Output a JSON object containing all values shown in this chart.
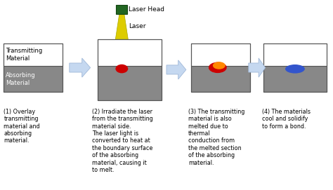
{
  "bg_color": "#ffffff",
  "gray_color": "#888888",
  "white_color": "#ffffff",
  "box_border": "#555555",
  "arrow_facecolor": "#c5d8f0",
  "arrow_edgecolor": "#a0b8d8",
  "laser_head_color": "#226622",
  "laser_head_dark": "#114411",
  "laser_beam_color": "#ddcc00",
  "laser_beam_edge": "#aaaa00",
  "red_blob": "#cc0000",
  "orange_blob": "#ff8800",
  "blue_blob": "#3355cc",
  "text_color": "#000000",
  "transmitting_label": "Transmitting\nMaterial",
  "absorbing_label": "Absorbing\nMaterial",
  "step1_label": "(1) Overlay\ntransmitting\nmaterial and\nabsorbing\nmaterial.",
  "step2_label": "(2) Irradiate the laser\nfrom the transmitting\nmaterial side.\nThe laser light is\nconverted to heat at\nthe boundary surface\nof the absorbing\nmaterial, causing it\nto melt.",
  "step3_label": "(3) The transmitting\nmaterial is also\nmelted due to\nthermal\nconduction from\nthe melted section\nof the absorbing\nmaterial.",
  "step4_label": "(4) The materials\ncool and solidify\nto form a bond.",
  "laser_head_label": "Laser Head",
  "laser_label": "Laser",
  "figw": 4.74,
  "figh": 2.71,
  "dpi": 100
}
